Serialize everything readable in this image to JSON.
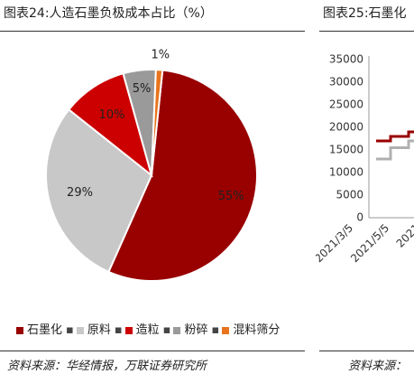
{
  "left_panel": {
    "title": "图表24:人造石墨负极成本占比（%）",
    "source": "资料来源：华经情报，万联证券研究所"
  },
  "right_panel": {
    "title": "图表25:石墨化",
    "source": "资料来源："
  },
  "chart_data": [
    {
      "type": "pie",
      "title": "",
      "categories": [
        "石墨化",
        "原料",
        "造粒",
        "粉碎",
        "混料筛分"
      ],
      "values": [
        55,
        29,
        10,
        5,
        1
      ],
      "labels": [
        "55%",
        "29%",
        "10%",
        "5%",
        "1%"
      ],
      "colors": [
        "#990000",
        "#C8C8C8",
        "#CC0000",
        "#9A9A9A",
        "#E8741E"
      ],
      "legend": "bottom"
    },
    {
      "type": "line",
      "title": "",
      "y_ticks": [
        "35000",
        "30000",
        "25000",
        "20000",
        "15000",
        "10000",
        "5000",
        "0"
      ],
      "ylim": [
        0,
        35000
      ],
      "x_ticks": [
        "2021/3/5",
        "2021/5/5",
        "2021"
      ],
      "series": [
        {
          "color": "#990000",
          "points": [
            [
              0,
              17000
            ],
            [
              0.4,
              17000
            ],
            [
              0.4,
              18000
            ],
            [
              0.9,
              18000
            ],
            [
              0.9,
              19000
            ],
            [
              1.2,
              19000
            ]
          ]
        },
        {
          "color": "#B0B0B0",
          "points": [
            [
              0,
              13000
            ],
            [
              0.4,
              13000
            ],
            [
              0.4,
              15500
            ],
            [
              0.9,
              15500
            ],
            [
              0.9,
              17000
            ],
            [
              1.2,
              17000
            ]
          ]
        }
      ]
    }
  ],
  "legend_separator": "▪"
}
